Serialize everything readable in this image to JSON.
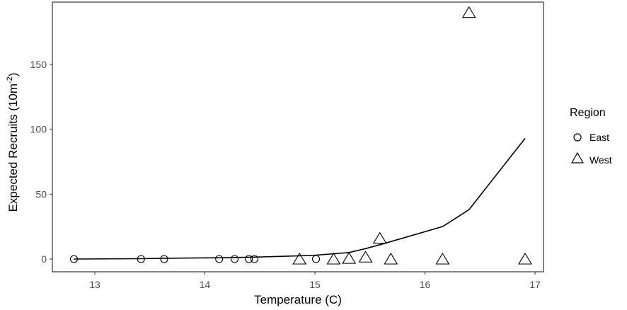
{
  "chart_data": {
    "type": "scatter",
    "title": "",
    "xlabel": "Temperature (C)",
    "ylabel": "Expected Recruits (10m",
    "ylabel_superscript": "-2",
    "ylabel_suffix": ")",
    "xlim": [
      12.63,
      17.07
    ],
    "ylim": [
      -10,
      197
    ],
    "x_ticks": [
      13,
      14,
      15,
      16,
      17
    ],
    "y_ticks": [
      0,
      50,
      100,
      150
    ],
    "grid": false,
    "legend": {
      "title": "Region",
      "position": "right",
      "entries": [
        {
          "label": "East",
          "shape": "circle"
        },
        {
          "label": "West",
          "shape": "triangle"
        }
      ]
    },
    "series": [
      {
        "name": "East",
        "shape": "circle",
        "points": [
          {
            "x": 12.81,
            "y": 0
          },
          {
            "x": 13.42,
            "y": 0
          },
          {
            "x": 13.63,
            "y": 0
          },
          {
            "x": 14.13,
            "y": 0
          },
          {
            "x": 14.27,
            "y": 0
          },
          {
            "x": 14.4,
            "y": 0
          },
          {
            "x": 14.45,
            "y": 0
          },
          {
            "x": 15.01,
            "y": 0
          }
        ]
      },
      {
        "name": "West",
        "shape": "triangle",
        "points": [
          {
            "x": 14.86,
            "y": 0
          },
          {
            "x": 15.17,
            "y": 0
          },
          {
            "x": 15.31,
            "y": 0.5
          },
          {
            "x": 15.46,
            "y": 1.5
          },
          {
            "x": 15.59,
            "y": 16
          },
          {
            "x": 15.69,
            "y": 0
          },
          {
            "x": 16.16,
            "y": 0
          },
          {
            "x": 16.4,
            "y": 190
          },
          {
            "x": 16.91,
            "y": 0
          }
        ]
      }
    ],
    "fitted_line": {
      "name": "Expected",
      "points": [
        {
          "x": 12.81,
          "y": 0
        },
        {
          "x": 13.42,
          "y": 0.3
        },
        {
          "x": 13.63,
          "y": 0.6
        },
        {
          "x": 14.13,
          "y": 1.0
        },
        {
          "x": 14.45,
          "y": 1.5
        },
        {
          "x": 14.86,
          "y": 2.5
        },
        {
          "x": 15.01,
          "y": 3
        },
        {
          "x": 15.31,
          "y": 5
        },
        {
          "x": 15.46,
          "y": 8
        },
        {
          "x": 15.59,
          "y": 11
        },
        {
          "x": 15.69,
          "y": 13.5
        },
        {
          "x": 16.16,
          "y": 25
        },
        {
          "x": 16.4,
          "y": 38
        },
        {
          "x": 16.91,
          "y": 93
        }
      ]
    }
  }
}
